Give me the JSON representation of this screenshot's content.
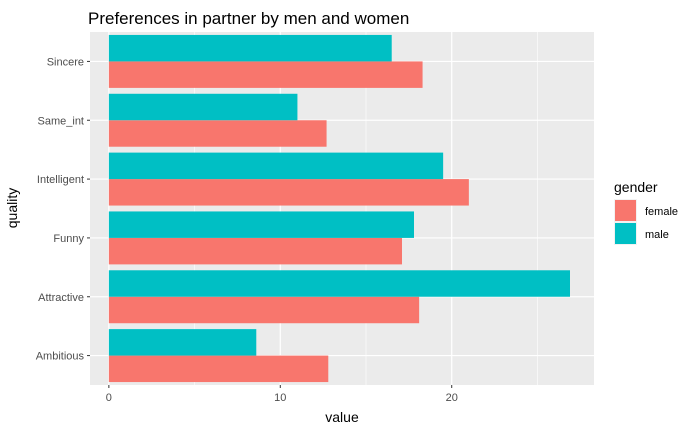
{
  "chart_data": {
    "type": "bar",
    "orientation": "horizontal",
    "title": "Preferences in partner by men and women",
    "xlabel": "value",
    "ylabel": "quality",
    "categories": [
      "Ambitious",
      "Attractive",
      "Funny",
      "Intelligent",
      "Same_int",
      "Sincere"
    ],
    "series": [
      {
        "name": "female",
        "color": "#F8766D",
        "values": [
          12.8,
          18.1,
          17.1,
          21.0,
          12.7,
          18.3
        ]
      },
      {
        "name": "male",
        "color": "#00BFC4",
        "values": [
          8.6,
          26.9,
          17.8,
          19.5,
          11.0,
          16.5
        ]
      }
    ],
    "xlim": [
      -1.1,
      28.3
    ],
    "xticks": [
      0,
      10,
      20
    ],
    "xtick_labels": [
      "0",
      "10",
      "20"
    ],
    "legend": {
      "title": "gender",
      "position": "right"
    },
    "panel_background": "#EBEBEB",
    "grid": true
  }
}
